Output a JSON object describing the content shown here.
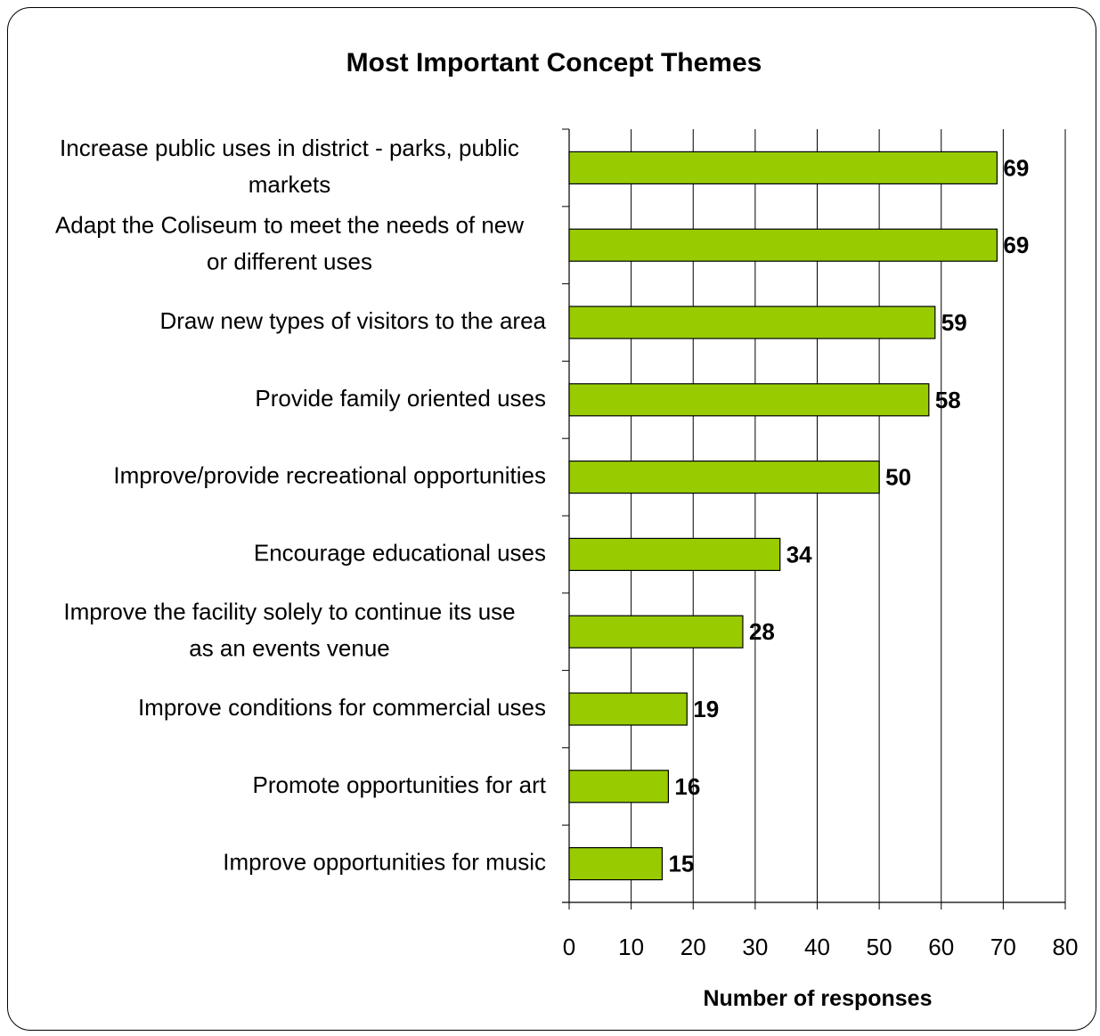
{
  "chart_data": {
    "type": "bar",
    "orientation": "horizontal",
    "title": "Most Important Concept Themes",
    "xlabel": "Number of responses",
    "ylabel": "",
    "xlim": [
      0,
      80
    ],
    "x_ticks": [
      0,
      10,
      20,
      30,
      40,
      50,
      60,
      70,
      80
    ],
    "grid": "vertical",
    "legend": "none",
    "bar_color": "#99cc00",
    "categories": [
      [
        "Increase public uses in district - parks, public",
        "markets"
      ],
      [
        "Adapt the Coliseum to meet the needs of new",
        "or different uses"
      ],
      [
        "Draw new types of visitors to the area"
      ],
      [
        "Provide family oriented uses"
      ],
      [
        "Improve/provide recreational opportunities"
      ],
      [
        "Encourage educational uses"
      ],
      [
        "Improve the facility solely to continue its use",
        "as an events venue"
      ],
      [
        "Improve conditions for commercial uses"
      ],
      [
        "Promote opportunities for art"
      ],
      [
        "Improve opportunities for music"
      ]
    ],
    "values": [
      69,
      69,
      59,
      58,
      50,
      34,
      28,
      19,
      16,
      15
    ]
  }
}
